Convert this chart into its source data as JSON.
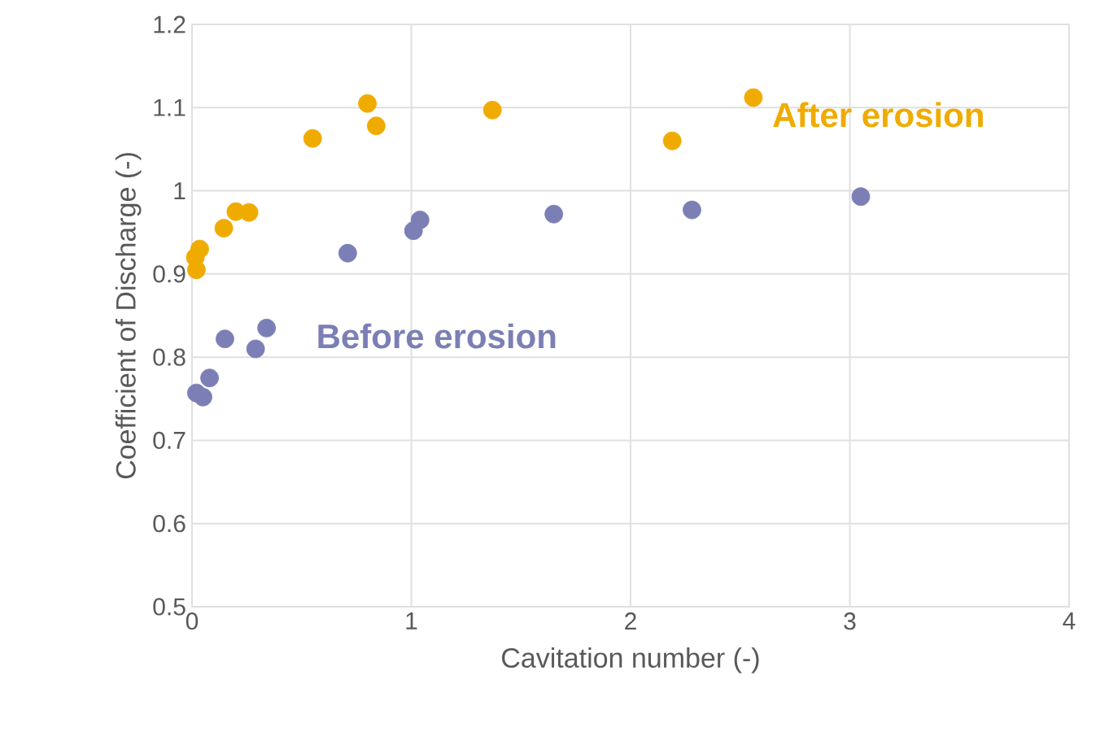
{
  "chart_data": {
    "type": "scatter",
    "xlabel": "Cavitation number (-)",
    "ylabel": "Coefficient of Discharge (-)",
    "xlim": [
      0,
      4
    ],
    "xticks": [
      0,
      1,
      2,
      3,
      4
    ],
    "ylim": [
      0.5,
      1.2
    ],
    "yticks": [
      0.5,
      0.6,
      0.7,
      0.8,
      0.9,
      1,
      1.1,
      1.2
    ],
    "grid": true,
    "marker": "circle",
    "series": [
      {
        "name": "After erosion",
        "color": "#f0ab00",
        "x": [
          0.02,
          0.015,
          0.035,
          0.145,
          0.2,
          0.26,
          0.55,
          0.8,
          0.84,
          1.37,
          2.19,
          2.56
        ],
        "values": [
          0.905,
          0.92,
          0.93,
          0.955,
          0.975,
          0.974,
          1.063,
          1.105,
          1.078,
          1.097,
          1.06,
          1.112
        ]
      },
      {
        "name": "Before erosion",
        "color": "#7b7fb5",
        "x": [
          0.02,
          0.05,
          0.08,
          0.15,
          0.29,
          0.34,
          0.71,
          1.01,
          1.04,
          1.65,
          2.28,
          3.05
        ],
        "values": [
          0.757,
          0.752,
          0.775,
          0.822,
          0.81,
          0.835,
          0.925,
          0.952,
          0.965,
          0.972,
          0.977,
          0.993
        ]
      }
    ]
  }
}
